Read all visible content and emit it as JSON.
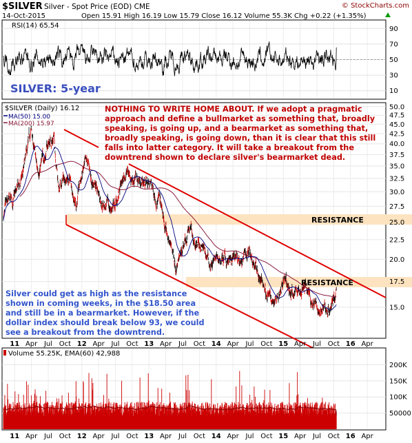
{
  "header": {
    "symbol": "$SILVER",
    "description": "Silver - Spot Price (EOD)",
    "exchange": "CME",
    "watermark": "© StockCharts.com",
    "date": "14-Oct-2015",
    "quote": "Open 15.91  High 16.19  Low 15.79  Close 16.12  Volume 55.3K  Chg +0.22 (+1.35%)",
    "quote_direction_icon": "up-triangle-icon"
  },
  "rsi_panel": {
    "label": "RSI(14) 65.54",
    "title_overlay": "SILVER: 5-year",
    "ticks": [
      90,
      70,
      50,
      30,
      10
    ],
    "overbought": 70,
    "oversold": 30
  },
  "price_panel": {
    "legend_main": "$SILVER (Daily) 16.12",
    "legend_ma50": "MA(50) 15.00",
    "legend_ma200": "MA(200) 15.97",
    "commentary": "NOTHING TO WRITE HOME ABOUT. If we adopt a pragmatic approach and define a bullmarket as something that, broadly speaking, is going up, and a bearmarket as something that, broadly speaking, is going down, than it is clear that this still falls into latter category. It will take a breakout from the downtrend shown to declare silver's bearmarket dead.",
    "note_lower_left": "Silver could get as high as the resistance shown in coming weeks, in the $18.50 area and still be in a bearmarket. However, if the dollar index should break below 93, we could see a breakout from the downtrend.",
    "resistance_label_1": "RESISTANCE",
    "resistance_label_2": "RESISTANCE"
  },
  "volume_panel": {
    "label": "Volume 55.25K, EMA(60) 42,988",
    "ticks": [
      "200K",
      "150K",
      "100K",
      "50000"
    ]
  },
  "x_axis": {
    "labels": [
      "11",
      "Apr",
      "Jul",
      "Oct",
      "12",
      "Apr",
      "Jul",
      "Oct",
      "13",
      "Apr",
      "Jul",
      "Oct",
      "14",
      "Apr",
      "Jul",
      "Oct",
      "15",
      "Apr",
      "Jul",
      "Oct",
      "16",
      "Apr"
    ]
  },
  "colors": {
    "price_up": "#000000",
    "price_down": "#cc0000",
    "ma50": "#000080",
    "ma200": "#8b1a3a",
    "trendline": "#e00000",
    "resistance_band": "#fde3c0",
    "commentary_text": "#c00000",
    "note_text": "#3355cc",
    "rsi_title": "#3b4fbf",
    "volume_bar": "#cc0000"
  },
  "chart_data": [
    {
      "type": "line",
      "name": "RSI(14)",
      "ylim": [
        0,
        100
      ],
      "ticks": [
        90,
        70,
        50,
        30,
        10
      ],
      "last_value": 65.54
    },
    {
      "type": "line",
      "name": "$SILVER (Daily)",
      "scale": "log",
      "ylim": [
        12.5,
        51
      ],
      "y_ticks": [
        50.0,
        47.5,
        45.0,
        42.5,
        40.0,
        37.5,
        35.0,
        32.5,
        30.0,
        27.5,
        25.0,
        22.5,
        20.0,
        17.5,
        15.0
      ],
      "x": [
        "2010-11",
        "2011-01",
        "2011-02",
        "2011-03",
        "2011-04",
        "2011-05",
        "2011-06",
        "2011-07",
        "2011-08",
        "2011-09",
        "2011-10",
        "2011-11",
        "2011-12",
        "2012-01",
        "2012-02",
        "2012-03",
        "2012-05",
        "2012-06",
        "2012-07",
        "2012-09",
        "2012-10",
        "2012-12",
        "2013-01",
        "2013-02",
        "2013-03",
        "2013-04",
        "2013-06",
        "2013-07",
        "2013-08",
        "2013-10",
        "2013-12",
        "2014-02",
        "2014-04",
        "2014-06",
        "2014-07",
        "2014-09",
        "2014-11",
        "2015-01",
        "2015-02",
        "2015-04",
        "2015-05",
        "2015-06",
        "2015-07",
        "2015-08",
        "2015-09",
        "2015-10"
      ],
      "close": [
        26,
        29,
        31,
        36,
        43,
        34,
        36,
        40,
        42,
        30,
        33,
        32,
        28,
        33,
        35,
        32,
        28,
        27,
        27.5,
        34,
        33,
        32,
        31.5,
        30,
        28,
        23.5,
        19.5,
        20,
        24,
        22,
        19.5,
        20,
        19.5,
        20,
        21.5,
        17.5,
        15.5,
        18,
        16.5,
        16.5,
        17,
        16,
        15,
        14.7,
        14.6,
        16.1
      ],
      "ma50_last": 15.0,
      "ma200_last": 15.97,
      "resistance_levels": [
        26.5,
        18.6
      ],
      "downtrend_channel": {
        "upper_line": [
          [
            "2011-04",
            44.5
          ],
          [
            "2016-06",
            17.0
          ]
        ],
        "lower_line": [
          [
            "2011-09",
            26.5
          ],
          [
            "2016-06",
            12.0
          ]
        ],
        "short_line": [
          [
            "2011-04",
            44.5
          ],
          [
            "2011-12",
            40.5
          ]
        ]
      }
    },
    {
      "type": "bar",
      "name": "Volume",
      "ylim": [
        0,
        250000
      ],
      "ticks": [
        200000,
        150000,
        100000,
        50000
      ],
      "last_value": 55250,
      "ema60_last": 42988
    }
  ]
}
